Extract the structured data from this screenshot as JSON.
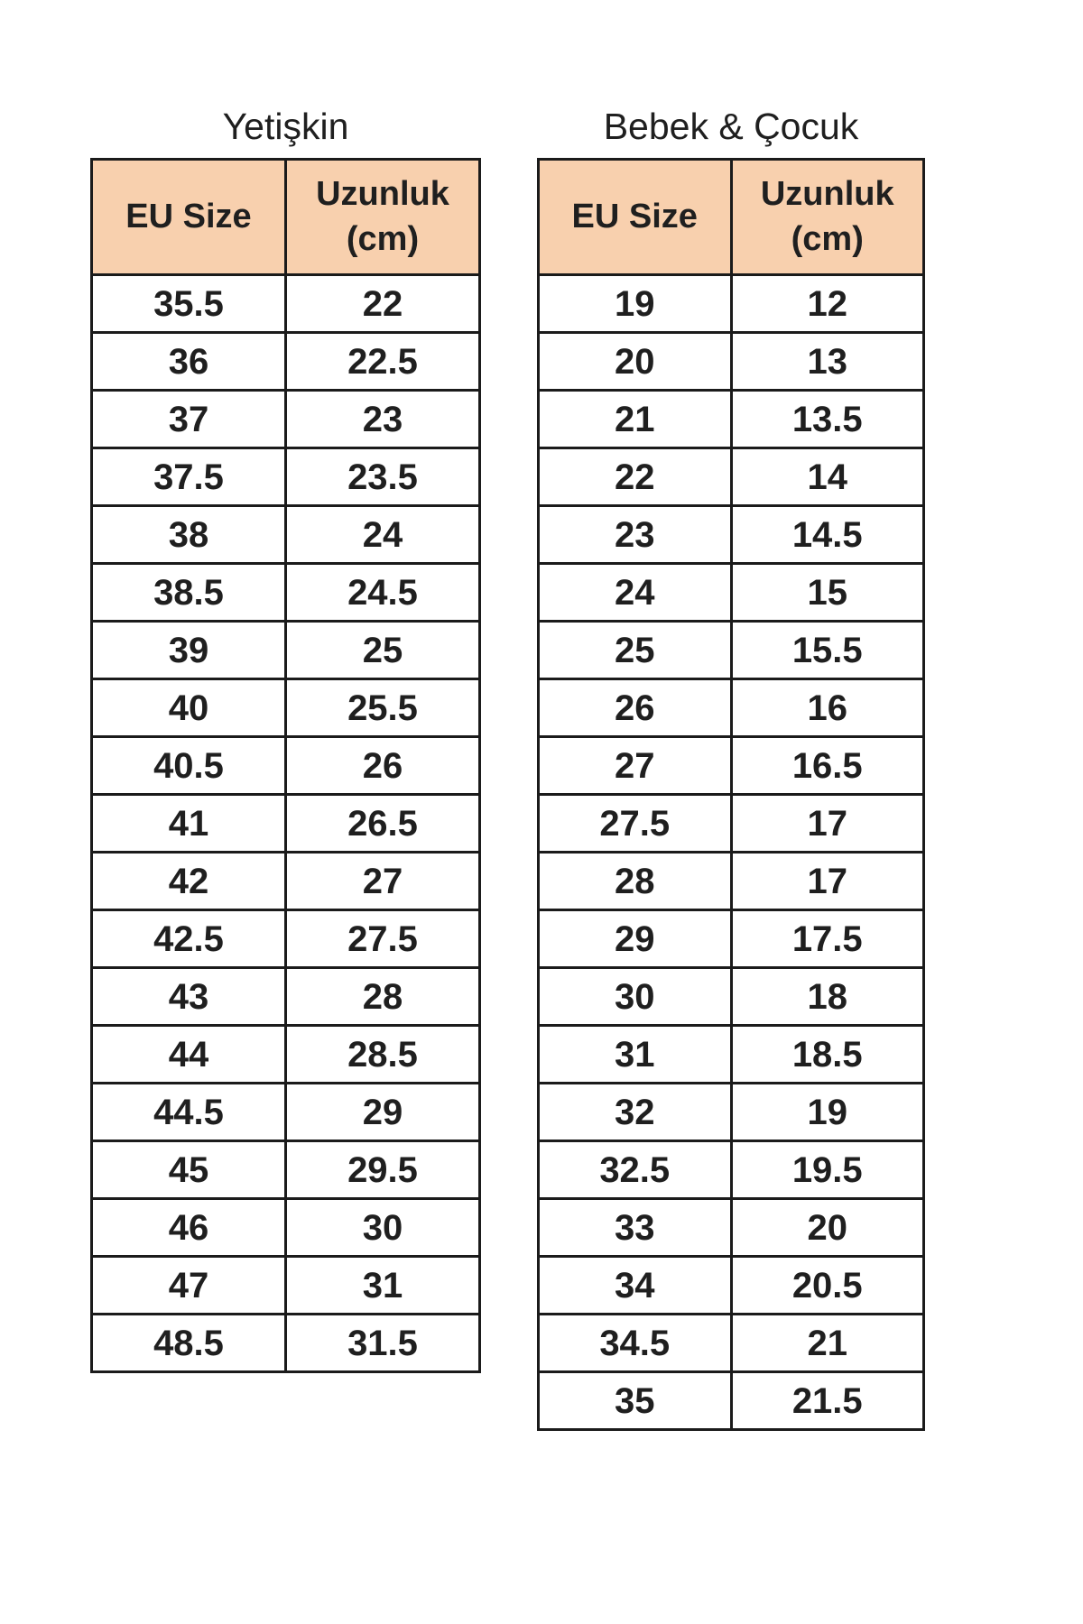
{
  "colors": {
    "background": "#ffffff",
    "header_bg": "#f8d0ae",
    "border": "#1b1b1b",
    "text": "#1f1f1f"
  },
  "chart_data": [
    {
      "type": "table",
      "title": "Yetişkin",
      "columns": [
        "EU Size",
        "Uzunluk (cm)"
      ],
      "header": {
        "size_label": "EU Size",
        "length_line1": "Uzunluk",
        "length_line2": "(cm)"
      },
      "rows": [
        [
          "35.5",
          "22"
        ],
        [
          "36",
          "22.5"
        ],
        [
          "37",
          "23"
        ],
        [
          "37.5",
          "23.5"
        ],
        [
          "38",
          "24"
        ],
        [
          "38.5",
          "24.5"
        ],
        [
          "39",
          "25"
        ],
        [
          "40",
          "25.5"
        ],
        [
          "40.5",
          "26"
        ],
        [
          "41",
          "26.5"
        ],
        [
          "42",
          "27"
        ],
        [
          "42.5",
          "27.5"
        ],
        [
          "43",
          "28"
        ],
        [
          "44",
          "28.5"
        ],
        [
          "44.5",
          "29"
        ],
        [
          "45",
          "29.5"
        ],
        [
          "46",
          "30"
        ],
        [
          "47",
          "31"
        ],
        [
          "48.5",
          "31.5"
        ]
      ]
    },
    {
      "type": "table",
      "title": "Bebek & Çocuk",
      "columns": [
        "EU Size",
        "Uzunluk (cm)"
      ],
      "header": {
        "size_label": "EU Size",
        "length_line1": "Uzunluk",
        "length_line2": "(cm)"
      },
      "rows": [
        [
          "19",
          "12"
        ],
        [
          "20",
          "13"
        ],
        [
          "21",
          "13.5"
        ],
        [
          "22",
          "14"
        ],
        [
          "23",
          "14.5"
        ],
        [
          "24",
          "15"
        ],
        [
          "25",
          "15.5"
        ],
        [
          "26",
          "16"
        ],
        [
          "27",
          "16.5"
        ],
        [
          "27.5",
          "17"
        ],
        [
          "28",
          "17"
        ],
        [
          "29",
          "17.5"
        ],
        [
          "30",
          "18"
        ],
        [
          "31",
          "18.5"
        ],
        [
          "32",
          "19"
        ],
        [
          "32.5",
          "19.5"
        ],
        [
          "33",
          "20"
        ],
        [
          "34",
          "20.5"
        ],
        [
          "34.5",
          "21"
        ],
        [
          "35",
          "21.5"
        ]
      ]
    }
  ]
}
